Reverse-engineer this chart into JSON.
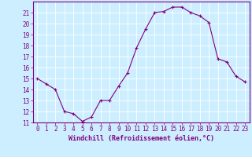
{
  "x": [
    0,
    1,
    2,
    3,
    4,
    5,
    6,
    7,
    8,
    9,
    10,
    11,
    12,
    13,
    14,
    15,
    16,
    17,
    18,
    19,
    20,
    21,
    22,
    23
  ],
  "y": [
    15.0,
    14.5,
    14.0,
    12.0,
    11.8,
    11.1,
    11.5,
    13.0,
    13.0,
    14.3,
    15.5,
    17.8,
    19.5,
    21.0,
    21.1,
    21.5,
    21.5,
    21.0,
    20.7,
    20.1,
    16.8,
    16.5,
    15.2,
    14.7
  ],
  "line_color": "#800080",
  "marker": "+",
  "marker_size": 3,
  "bg_color": "#cceeff",
  "grid_color": "#ffffff",
  "xlabel": "Windchill (Refroidissement éolien,°C)",
  "ylim": [
    11,
    22
  ],
  "xlim": [
    -0.5,
    23.5
  ],
  "yticks": [
    11,
    12,
    13,
    14,
    15,
    16,
    17,
    18,
    19,
    20,
    21
  ],
  "xticks": [
    0,
    1,
    2,
    3,
    4,
    5,
    6,
    7,
    8,
    9,
    10,
    11,
    12,
    13,
    14,
    15,
    16,
    17,
    18,
    19,
    20,
    21,
    22,
    23
  ],
  "tick_color": "#800080",
  "label_color": "#800080",
  "spine_color": "#800080",
  "font_size": 5.5,
  "xlabel_fontsize": 6.0
}
